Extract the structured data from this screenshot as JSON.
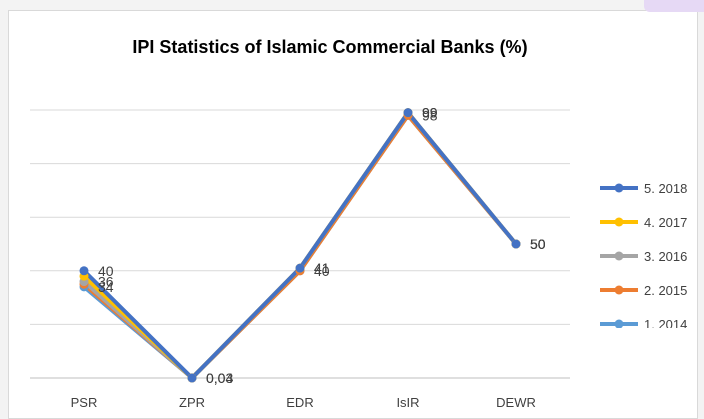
{
  "chart_data": {
    "type": "line",
    "title": "IPI Statistics of Islamic Commercial Banks (%)",
    "xlabel": "",
    "ylabel": "",
    "categories": [
      "PSR",
      "ZPR",
      "EDR",
      "IsIR",
      "DEWR"
    ],
    "ylim": [
      0,
      100
    ],
    "grid": true,
    "legend_position": "right",
    "series": [
      {
        "name": "5. 2018",
        "color": "#4472C4",
        "values": [
          40,
          0.01,
          41,
          99,
          50
        ]
      },
      {
        "name": "4. 2017",
        "color": "#FFC000",
        "values": [
          38,
          0.01,
          41,
          99,
          50
        ]
      },
      {
        "name": "3. 2016",
        "color": "#A5A5A5",
        "values": [
          36,
          0.01,
          41,
          99,
          50
        ]
      },
      {
        "name": "2. 2015",
        "color": "#ED7D31",
        "values": [
          35,
          0.03,
          40,
          98,
          50
        ]
      },
      {
        "name": "1. 2014",
        "color": "#5B9BD5",
        "values": [
          34,
          0.04,
          40,
          98,
          50
        ]
      }
    ],
    "data_labels": [
      {
        "text": "40",
        "series": 0,
        "point": 0
      },
      {
        "text": "36",
        "series": 2,
        "point": 0
      },
      {
        "text": "34",
        "series": 4,
        "point": 0
      },
      {
        "text": "0,03",
        "series": 3,
        "point": 1
      },
      {
        "text": "0,04",
        "series": 4,
        "point": 1
      },
      {
        "text": "41",
        "series": 0,
        "point": 2
      },
      {
        "text": "41",
        "series": 2,
        "point": 2
      },
      {
        "text": "40",
        "series": 4,
        "point": 2
      },
      {
        "text": "99",
        "series": 0,
        "point": 3
      },
      {
        "text": "99",
        "series": 2,
        "point": 3
      },
      {
        "text": "98",
        "series": 3,
        "point": 3
      },
      {
        "text": "50",
        "series": 0,
        "point": 4
      },
      {
        "text": "50",
        "series": 1,
        "point": 4
      },
      {
        "text": "50",
        "series": 3,
        "point": 4
      }
    ]
  }
}
